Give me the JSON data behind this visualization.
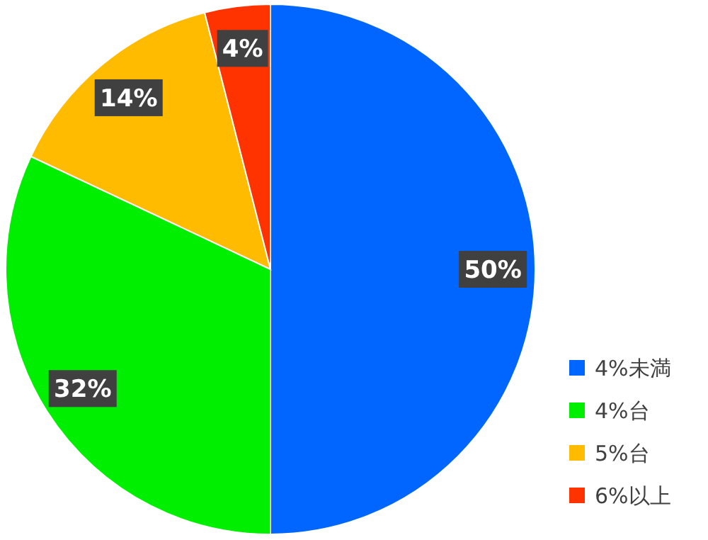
{
  "chart_data": {
    "type": "pie",
    "categories": [
      "4%未満",
      "4%台",
      "5%台",
      "6%以上"
    ],
    "values": [
      50,
      32,
      14,
      4
    ],
    "colors": [
      "#0066ff",
      "#00ee00",
      "#ffbb00",
      "#ff3300"
    ],
    "value_labels": [
      "50%",
      "32%",
      "14%",
      "4%"
    ],
    "legend": "bottom right"
  }
}
